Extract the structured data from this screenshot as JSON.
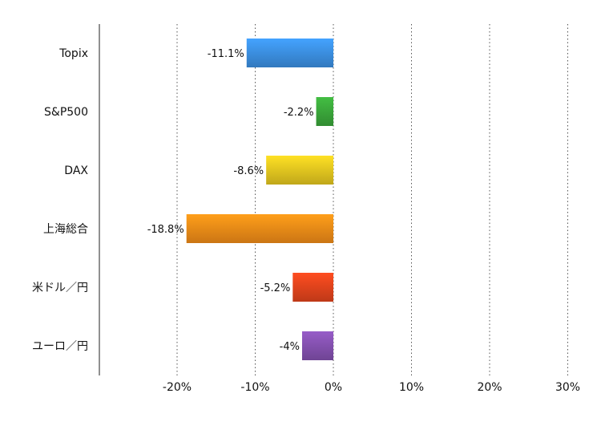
{
  "chart_data": {
    "type": "bar",
    "orientation": "horizontal",
    "categories": [
      "Topix",
      "S&P500",
      "DAX",
      "上海総合",
      "米ドル／円",
      "ユーロ／円"
    ],
    "values": [
      -11.1,
      -2.2,
      -8.6,
      -18.8,
      -5.2,
      -4
    ],
    "value_labels": [
      "-11.1%",
      "-2.2%",
      "-8.6%",
      "-18.8%",
      "-5.2%",
      "-4%"
    ],
    "colors": [
      "#3b8ee0",
      "#3aa53a",
      "#e2c41f",
      "#ef8a17",
      "#e0431c",
      "#8350ae"
    ],
    "xlim": [
      -30,
      30
    ],
    "x_ticks": [
      -20,
      -10,
      0,
      10,
      20,
      30
    ],
    "x_tick_labels": [
      "-20%",
      "-10%",
      "0%",
      "10%",
      "20%",
      "30%"
    ],
    "grid": "vertical dotted",
    "title": "",
    "xlabel": "",
    "ylabel": ""
  }
}
